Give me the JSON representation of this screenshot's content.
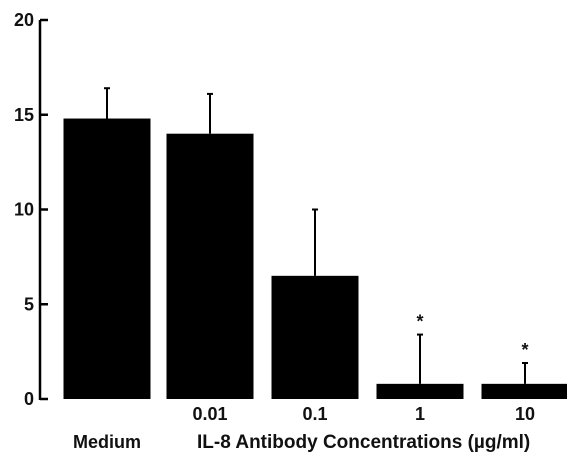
{
  "chart_data": {
    "type": "bar",
    "categories": [
      "Medium",
      "0.01",
      "0.1",
      "1",
      "10"
    ],
    "series": [
      {
        "values": [
          14.8,
          14.0,
          6.5,
          0.8,
          0.8
        ],
        "error_upper": [
          1.6,
          2.1,
          3.5,
          2.6,
          1.1
        ]
      }
    ],
    "significance": [
      "",
      "",
      "",
      "*",
      "*"
    ],
    "xlabel": "IL-8 Antibody Concentrations (µg/ml)",
    "ylabel": "",
    "yticks": [
      0,
      5,
      10,
      15,
      20
    ],
    "ylim": [
      0,
      20
    ],
    "bar_color": "#000000",
    "grid": false
  }
}
